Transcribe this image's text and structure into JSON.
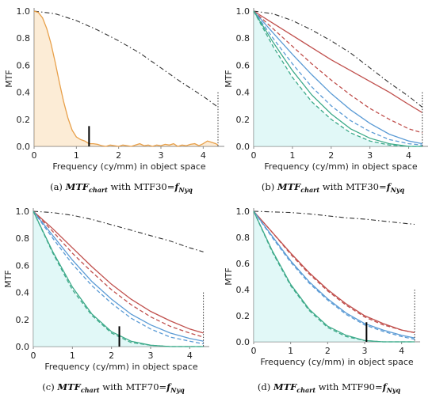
{
  "chart_data": [
    {
      "id": "a",
      "type": "line",
      "caption_prefix": "(a) ",
      "caption_italic": "MTF",
      "caption_italic_sub": "chart",
      "caption_mid": " with MTF30=",
      "caption_tail": "f",
      "caption_tail_sub": "Nyq",
      "xlabel": "Frequency (cy/mm) in object space",
      "ylabel": "MTF",
      "xlim": [
        0,
        4.5
      ],
      "ylim": [
        0,
        1.0
      ],
      "xticks": [
        "0",
        "1",
        "2",
        "3",
        "4"
      ],
      "yticks": [
        "0.0",
        "0.2",
        "0.4",
        "0.6",
        "0.8",
        "1.0"
      ],
      "nyquist": 4.35,
      "marker": {
        "x": 1.3,
        "y": 0.15
      },
      "series": [
        {
          "role": "diffraction",
          "style": "dashdot",
          "color": "#333333",
          "x": [
            0,
            0.5,
            1,
            1.5,
            2,
            2.5,
            3,
            3.5,
            4,
            4.35
          ],
          "y": [
            1.0,
            0.98,
            0.93,
            0.86,
            0.78,
            0.69,
            0.58,
            0.47,
            0.37,
            0.29
          ]
        },
        {
          "role": "chart-mtf",
          "style": "solid",
          "color": "#e8a04a",
          "fill": "#f5c98a",
          "x": [
            0,
            0.1,
            0.2,
            0.3,
            0.4,
            0.5,
            0.6,
            0.7,
            0.8,
            0.9,
            1.0,
            1.1,
            1.2,
            1.3,
            1.4,
            1.5,
            1.6,
            1.7,
            1.8,
            1.9,
            2.0,
            2.1,
            2.2,
            2.3,
            2.4,
            2.5,
            2.6,
            2.7,
            2.8,
            2.9,
            3.0,
            3.1,
            3.2,
            3.3,
            3.4,
            3.5,
            3.6,
            3.7,
            3.8,
            3.9,
            4.0,
            4.1,
            4.2,
            4.3,
            4.35
          ],
          "y": [
            1.0,
            0.99,
            0.95,
            0.87,
            0.76,
            0.62,
            0.47,
            0.33,
            0.21,
            0.12,
            0.07,
            0.05,
            0.04,
            0.02,
            0.02,
            0.015,
            0.005,
            0.0,
            0.01,
            0.005,
            0.0,
            0.01,
            0.005,
            0.0,
            0.01,
            0.02,
            0.005,
            0.01,
            0.0,
            0.01,
            0.005,
            0.015,
            0.01,
            0.02,
            0.0,
            0.01,
            0.005,
            0.015,
            0.02,
            0.005,
            0.02,
            0.04,
            0.03,
            0.02,
            0.01
          ]
        }
      ]
    },
    {
      "id": "b",
      "type": "line",
      "caption_prefix": "(b) ",
      "caption_italic": "MTF",
      "caption_italic_sub": "chart",
      "caption_mid": " with MTF30=",
      "caption_tail": "f",
      "caption_tail_sub": "Nyq",
      "xlabel": "Frequency (cy/mm) in object space",
      "ylabel": "MTF",
      "xlim": [
        0,
        4.5
      ],
      "ylim": [
        0,
        1.0
      ],
      "xticks": [
        "0",
        "1",
        "2",
        "3",
        "4"
      ],
      "yticks": [
        "0.0",
        "0.2",
        "0.4",
        "0.6",
        "0.8",
        "1.0"
      ],
      "nyquist": 4.35,
      "marker": null,
      "fill_under": "#c8f2f0",
      "series": [
        {
          "role": "diffraction",
          "style": "dashdot",
          "color": "#333333",
          "x": [
            0,
            0.5,
            1,
            1.5,
            2,
            2.5,
            3,
            3.5,
            4,
            4.35
          ],
          "y": [
            1.0,
            0.98,
            0.93,
            0.86,
            0.78,
            0.69,
            0.58,
            0.47,
            0.37,
            0.29
          ]
        },
        {
          "role": "red-solid",
          "style": "solid",
          "color": "#c0504d",
          "x": [
            0,
            0.5,
            1,
            1.5,
            2,
            2.5,
            3,
            3.5,
            4,
            4.35
          ],
          "y": [
            1.0,
            0.91,
            0.82,
            0.73,
            0.64,
            0.56,
            0.48,
            0.4,
            0.31,
            0.25
          ]
        },
        {
          "role": "red-dashed",
          "style": "dashed",
          "color": "#c0504d",
          "x": [
            0,
            0.5,
            1,
            1.5,
            2,
            2.5,
            3,
            3.5,
            4,
            4.35
          ],
          "y": [
            1.0,
            0.87,
            0.74,
            0.61,
            0.49,
            0.38,
            0.28,
            0.2,
            0.13,
            0.1
          ]
        },
        {
          "role": "blue-solid",
          "style": "solid",
          "color": "#5b9bd5",
          "x": [
            0,
            0.5,
            1,
            1.5,
            2,
            2.5,
            3,
            3.5,
            4,
            4.35
          ],
          "y": [
            1.0,
            0.84,
            0.68,
            0.53,
            0.39,
            0.27,
            0.17,
            0.09,
            0.04,
            0.02
          ]
        },
        {
          "role": "blue-dashed",
          "style": "dashed",
          "color": "#5b9bd5",
          "x": [
            0,
            0.5,
            1,
            1.5,
            2,
            2.5,
            3,
            3.5,
            4,
            4.35
          ],
          "y": [
            1.0,
            0.8,
            0.61,
            0.44,
            0.3,
            0.19,
            0.11,
            0.05,
            0.02,
            0.01
          ]
        },
        {
          "role": "green-solid",
          "style": "solid",
          "color": "#3daa8a",
          "x": [
            0,
            0.5,
            1,
            1.5,
            2,
            2.5,
            3,
            3.5,
            4,
            4.35
          ],
          "y": [
            1.0,
            0.77,
            0.56,
            0.38,
            0.24,
            0.13,
            0.06,
            0.02,
            0.0,
            0.0
          ]
        },
        {
          "role": "green-dashed",
          "style": "dashed",
          "color": "#3daa8a",
          "x": [
            0,
            0.5,
            1,
            1.5,
            2,
            2.5,
            3,
            3.5,
            4,
            4.35
          ],
          "y": [
            1.0,
            0.74,
            0.51,
            0.33,
            0.2,
            0.1,
            0.04,
            0.01,
            0.0,
            0.0
          ]
        }
      ]
    },
    {
      "id": "c",
      "type": "line",
      "caption_prefix": "(c) ",
      "caption_italic": "MTF",
      "caption_italic_sub": "chart",
      "caption_mid": " with MTF70=",
      "caption_tail": "f",
      "caption_tail_sub": "Nyq",
      "xlabel": "Frequency (cy/mm) in object space",
      "ylabel": "MTF",
      "xlim": [
        0,
        4.5
      ],
      "ylim": [
        0,
        1.0
      ],
      "xticks": [
        "0",
        "1",
        "2",
        "3",
        "4"
      ],
      "yticks": [
        "0.0",
        "0.2",
        "0.4",
        "0.6",
        "0.8",
        "1.0"
      ],
      "nyquist": 4.35,
      "marker": {
        "x": 2.2,
        "y": 0.15
      },
      "fill_under": "#c8f2f0",
      "series": [
        {
          "role": "diffraction",
          "style": "dashdot",
          "color": "#333333",
          "x": [
            0,
            0.5,
            1,
            1.5,
            2,
            2.5,
            3,
            3.5,
            4,
            4.35
          ],
          "y": [
            1.0,
            0.99,
            0.97,
            0.94,
            0.9,
            0.86,
            0.82,
            0.78,
            0.73,
            0.7
          ]
        },
        {
          "role": "red-solid",
          "style": "solid",
          "color": "#c0504d",
          "x": [
            0,
            0.5,
            1,
            1.5,
            2,
            2.5,
            3,
            3.5,
            4,
            4.35
          ],
          "y": [
            1.0,
            0.87,
            0.73,
            0.59,
            0.46,
            0.35,
            0.26,
            0.19,
            0.13,
            0.1
          ]
        },
        {
          "role": "red-dashed",
          "style": "dashed",
          "color": "#c0504d",
          "x": [
            0,
            0.5,
            1,
            1.5,
            2,
            2.5,
            3,
            3.5,
            4,
            4.35
          ],
          "y": [
            1.0,
            0.85,
            0.69,
            0.55,
            0.42,
            0.31,
            0.22,
            0.15,
            0.1,
            0.07
          ]
        },
        {
          "role": "blue-solid",
          "style": "solid",
          "color": "#5b9bd5",
          "x": [
            0,
            0.5,
            1,
            1.5,
            2,
            2.5,
            3,
            3.5,
            4,
            4.35
          ],
          "y": [
            1.0,
            0.82,
            0.64,
            0.48,
            0.35,
            0.24,
            0.16,
            0.1,
            0.06,
            0.04
          ]
        },
        {
          "role": "blue-dashed",
          "style": "dashed",
          "color": "#5b9bd5",
          "x": [
            0,
            0.5,
            1,
            1.5,
            2,
            2.5,
            3,
            3.5,
            4,
            4.35
          ],
          "y": [
            1.0,
            0.8,
            0.61,
            0.45,
            0.32,
            0.21,
            0.13,
            0.07,
            0.04,
            0.02
          ]
        },
        {
          "role": "green-solid",
          "style": "solid",
          "color": "#3daa8a",
          "x": [
            0,
            0.5,
            1,
            1.5,
            2,
            2.5,
            3,
            3.5,
            4,
            4.35
          ],
          "y": [
            1.0,
            0.7,
            0.44,
            0.24,
            0.11,
            0.04,
            0.01,
            0.0,
            0.0,
            0.0
          ]
        },
        {
          "role": "green-dashed",
          "style": "dashed",
          "color": "#3daa8a",
          "x": [
            0,
            0.5,
            1,
            1.5,
            2,
            2.5,
            3,
            3.5,
            4,
            4.35
          ],
          "y": [
            1.0,
            0.69,
            0.42,
            0.23,
            0.1,
            0.03,
            0.01,
            0.0,
            0.0,
            0.0
          ]
        }
      ]
    },
    {
      "id": "d",
      "type": "line",
      "caption_prefix": "(d) ",
      "caption_italic": "MTF",
      "caption_italic_sub": "chart",
      "caption_mid": " with MTF90=",
      "caption_tail": "f",
      "caption_tail_sub": "Nyq",
      "xlabel": "Frequency (cy/mm) in object space",
      "ylabel": "MTF",
      "xlim": [
        0,
        4.5
      ],
      "ylim": [
        0,
        1.0
      ],
      "xticks": [
        "0",
        "1",
        "2",
        "3",
        "4"
      ],
      "yticks": [
        "0.0",
        "0.2",
        "0.4",
        "0.6",
        "0.8",
        "1.0"
      ],
      "nyquist": 4.35,
      "marker": {
        "x": 3.05,
        "y": 0.15
      },
      "fill_under": "#c8f2f0",
      "series": [
        {
          "role": "diffraction",
          "style": "dashdot",
          "color": "#333333",
          "x": [
            0,
            0.5,
            1,
            1.5,
            2,
            2.5,
            3,
            3.5,
            4,
            4.35
          ],
          "y": [
            1.0,
            0.995,
            0.99,
            0.98,
            0.965,
            0.95,
            0.94,
            0.925,
            0.91,
            0.9
          ]
        },
        {
          "role": "red-solid",
          "style": "solid",
          "color": "#c0504d",
          "x": [
            0,
            0.5,
            1,
            1.5,
            2,
            2.5,
            3,
            3.5,
            4,
            4.35
          ],
          "y": [
            1.0,
            0.84,
            0.68,
            0.53,
            0.4,
            0.29,
            0.2,
            0.14,
            0.09,
            0.07
          ]
        },
        {
          "role": "red-dashed",
          "style": "dashed",
          "color": "#c0504d",
          "x": [
            0,
            0.5,
            1,
            1.5,
            2,
            2.5,
            3,
            3.5,
            4,
            4.35
          ],
          "y": [
            1.0,
            0.84,
            0.67,
            0.52,
            0.39,
            0.28,
            0.19,
            0.13,
            0.09,
            0.07
          ]
        },
        {
          "role": "blue-solid",
          "style": "solid",
          "color": "#5b9bd5",
          "x": [
            0,
            0.5,
            1,
            1.5,
            2,
            2.5,
            3,
            3.5,
            4,
            4.35
          ],
          "y": [
            1.0,
            0.81,
            0.62,
            0.46,
            0.33,
            0.22,
            0.14,
            0.09,
            0.05,
            0.03
          ]
        },
        {
          "role": "blue-dashed",
          "style": "dashed",
          "color": "#5b9bd5",
          "x": [
            0,
            0.5,
            1,
            1.5,
            2,
            2.5,
            3,
            3.5,
            4,
            4.35
          ],
          "y": [
            1.0,
            0.8,
            0.61,
            0.45,
            0.32,
            0.21,
            0.13,
            0.08,
            0.04,
            0.02
          ]
        },
        {
          "role": "green-solid",
          "style": "solid",
          "color": "#3daa8a",
          "x": [
            0,
            0.5,
            1,
            1.5,
            2,
            2.5,
            3,
            3.5,
            4,
            4.35
          ],
          "y": [
            1.0,
            0.7,
            0.44,
            0.25,
            0.12,
            0.05,
            0.01,
            0.0,
            0.0,
            0.0
          ]
        },
        {
          "role": "green-dashed",
          "style": "dashed",
          "color": "#3daa8a",
          "x": [
            0,
            0.5,
            1,
            1.5,
            2,
            2.5,
            3,
            3.5,
            4,
            4.35
          ],
          "y": [
            1.0,
            0.69,
            0.43,
            0.24,
            0.11,
            0.04,
            0.01,
            0.0,
            0.0,
            0.0
          ]
        }
      ]
    }
  ]
}
